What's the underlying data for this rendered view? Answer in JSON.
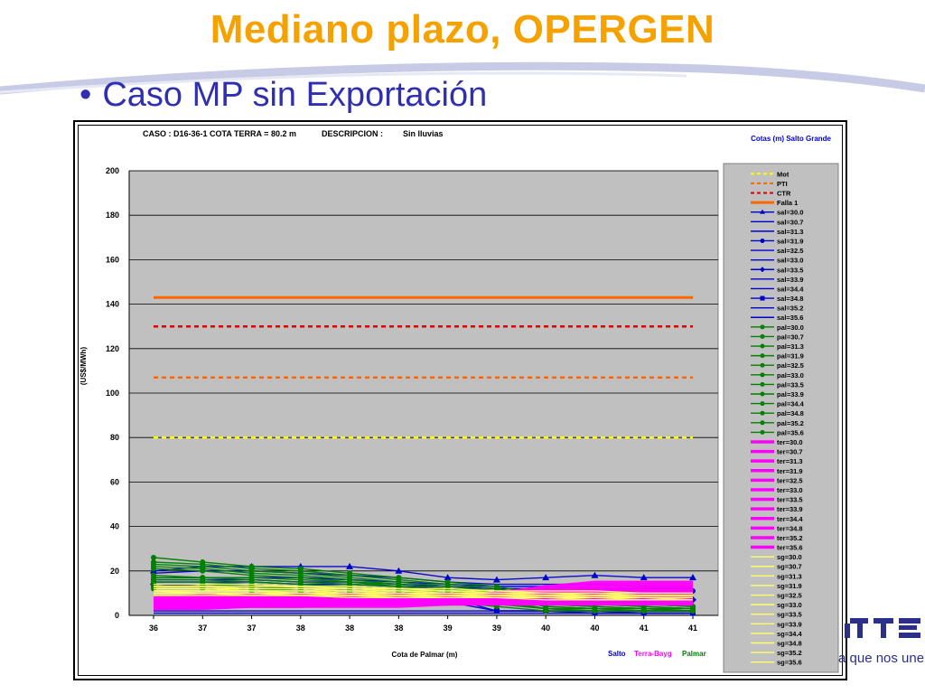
{
  "slide": {
    "title": "Mediano plazo, OPERGEN",
    "bullet": "Caso MP sin Exportación",
    "slogan": "a que nos une"
  },
  "colors": {
    "title": "#f5a200",
    "bullet": "#2f2fb0",
    "plot_bg": "#c0c0c0",
    "mot": "#ffff00",
    "pti": "#ff6600",
    "ctr": "#e00000",
    "falla": "#ff6600",
    "sal": "#0000cc",
    "pal": "#008000",
    "ter": "#ff00ff",
    "sg": "#ffff66"
  },
  "chart_data": {
    "type": "line",
    "header_case": "CASO : D16-36-1 COTA TERRA = 80.2 m",
    "header_desc_label": "DESCRIPCION :",
    "header_desc_value": "Sin lluvias",
    "legend_title": "Cotas (m) Salto Grande",
    "legend_position": "right",
    "xlabel": "Cota de Palmar (m)",
    "ylabel": "(US$/MWh)",
    "x_group_labels": [
      "Salto",
      "Terra-Bayg",
      "Palmar"
    ],
    "categories": [
      "36",
      "37",
      "37",
      "38",
      "38",
      "38",
      "39",
      "39",
      "40",
      "40",
      "41",
      "41"
    ],
    "ylim": [
      0,
      200
    ],
    "yticks": [
      0,
      20,
      40,
      60,
      80,
      100,
      120,
      140,
      160,
      180,
      200
    ],
    "grid": true,
    "reference_lines": [
      {
        "name": "Mot",
        "value": 80,
        "style": "dashed",
        "color": "#ffff00"
      },
      {
        "name": "PTI",
        "value": 107,
        "style": "dashed",
        "color": "#ff6600"
      },
      {
        "name": "CTR",
        "value": 130,
        "style": "dashed",
        "color": "#e00000"
      },
      {
        "name": "Falla 1",
        "value": 143,
        "style": "solid",
        "color": "#ff6600"
      }
    ],
    "series": [
      {
        "name": "sal=30.0",
        "group": "sal",
        "marker": "triangle",
        "values": [
          20,
          22,
          22,
          22,
          22,
          20,
          17,
          16,
          17,
          18,
          17,
          17
        ]
      },
      {
        "name": "sal=30.7",
        "group": "sal",
        "marker": "none",
        "values": [
          19,
          20,
          20,
          19,
          18,
          17,
          15,
          14,
          14,
          14,
          13,
          13
        ]
      },
      {
        "name": "sal=31.3",
        "group": "sal",
        "marker": "none",
        "values": [
          17,
          17,
          17,
          17,
          16,
          15,
          14,
          13,
          13,
          12,
          12,
          12
        ]
      },
      {
        "name": "sal=31.9",
        "group": "sal",
        "marker": "circle",
        "values": [
          16,
          16,
          16,
          15,
          15,
          14,
          13,
          12,
          12,
          11,
          11,
          11
        ]
      },
      {
        "name": "sal=32.5",
        "group": "sal",
        "marker": "none",
        "values": [
          15,
          15,
          15,
          14,
          14,
          13,
          12,
          11,
          10,
          10,
          10,
          9
        ]
      },
      {
        "name": "sal=33.0",
        "group": "sal",
        "marker": "none",
        "values": [
          14,
          14,
          14,
          13,
          13,
          12,
          11,
          10,
          9,
          9,
          9,
          8
        ]
      },
      {
        "name": "sal=33.5",
        "group": "sal",
        "marker": "diamond",
        "values": [
          14,
          13,
          13,
          12,
          12,
          11,
          10,
          9,
          8,
          8,
          8,
          7
        ]
      },
      {
        "name": "sal=33.9",
        "group": "sal",
        "marker": "none",
        "values": [
          13,
          13,
          12,
          12,
          11,
          10,
          9,
          8,
          7,
          6,
          6,
          5
        ]
      },
      {
        "name": "sal=34.4",
        "group": "sal",
        "marker": "none",
        "values": [
          12,
          12,
          11,
          11,
          10,
          9,
          6,
          2,
          2,
          2,
          1,
          1
        ]
      },
      {
        "name": "sal=34.8",
        "group": "sal",
        "marker": "square",
        "values": [
          14,
          13,
          12,
          11,
          10,
          9,
          8,
          2,
          2,
          1,
          1,
          1
        ]
      },
      {
        "name": "sal=35.2",
        "group": "sal",
        "marker": "none",
        "values": [
          2,
          2,
          2,
          2,
          2,
          2,
          2,
          2,
          2,
          2,
          2,
          2
        ]
      },
      {
        "name": "sal=35.6",
        "group": "sal",
        "marker": "none",
        "values": [
          1,
          1,
          1,
          1,
          1,
          1,
          1,
          1,
          1,
          1,
          1,
          1
        ]
      },
      {
        "name": "pal=30.0",
        "group": "pal",
        "marker": "circle",
        "values": [
          26,
          24,
          22,
          21,
          19,
          17,
          15,
          13,
          9,
          6,
          5,
          4
        ]
      },
      {
        "name": "pal=30.7",
        "group": "pal",
        "marker": "circle",
        "values": [
          24,
          23,
          21,
          20,
          18,
          16,
          14,
          12,
          8,
          6,
          5,
          4
        ]
      },
      {
        "name": "pal=31.3",
        "group": "pal",
        "marker": "circle",
        "values": [
          23,
          22,
          20,
          19,
          17,
          15,
          13,
          11,
          7,
          5,
          4,
          3
        ]
      },
      {
        "name": "pal=31.9",
        "group": "pal",
        "marker": "circle",
        "values": [
          22,
          21,
          19,
          18,
          16,
          14,
          12,
          10,
          6,
          5,
          4,
          3
        ]
      },
      {
        "name": "pal=32.5",
        "group": "pal",
        "marker": "circle",
        "values": [
          21,
          20,
          18,
          17,
          15,
          13,
          11,
          9,
          5,
          4,
          3,
          3
        ]
      },
      {
        "name": "pal=33.0",
        "group": "pal",
        "marker": "circle",
        "values": [
          18,
          17,
          17,
          16,
          15,
          14,
          12,
          10,
          5,
          4,
          3,
          2
        ]
      },
      {
        "name": "pal=33.5",
        "group": "pal",
        "marker": "circle",
        "values": [
          17,
          17,
          16,
          15,
          14,
          13,
          11,
          9,
          4,
          3,
          3,
          2
        ]
      },
      {
        "name": "pal=33.9",
        "group": "pal",
        "marker": "circle",
        "values": [
          16,
          16,
          15,
          14,
          13,
          12,
          10,
          8,
          4,
          3,
          2,
          2
        ]
      },
      {
        "name": "pal=34.4",
        "group": "pal",
        "marker": "circle",
        "values": [
          15,
          15,
          14,
          13,
          12,
          11,
          9,
          7,
          3,
          3,
          2,
          2
        ]
      },
      {
        "name": "pal=34.8",
        "group": "pal",
        "marker": "circle",
        "values": [
          14,
          14,
          13,
          12,
          11,
          10,
          8,
          6,
          3,
          2,
          2,
          2
        ]
      },
      {
        "name": "pal=35.2",
        "group": "pal",
        "marker": "circle",
        "values": [
          13,
          13,
          12,
          11,
          10,
          9,
          7,
          5,
          3,
          2,
          2,
          2
        ]
      },
      {
        "name": "pal=35.6",
        "group": "pal",
        "marker": "circle",
        "values": [
          12,
          12,
          11,
          10,
          9,
          8,
          6,
          4,
          2,
          2,
          2,
          2
        ]
      },
      {
        "name": "ter=30.0",
        "group": "ter",
        "marker": "none",
        "values": [
          8,
          9,
          9,
          9,
          9,
          9,
          9,
          10,
          13,
          15,
          15,
          15
        ]
      },
      {
        "name": "ter=30.7",
        "group": "ter",
        "marker": "none",
        "values": [
          7,
          8,
          9,
          9,
          9,
          9,
          9,
          10,
          12,
          14,
          14,
          14
        ]
      },
      {
        "name": "ter=31.3",
        "group": "ter",
        "marker": "none",
        "values": [
          7,
          8,
          8,
          8,
          8,
          8,
          9,
          9,
          11,
          13,
          13,
          13
        ]
      },
      {
        "name": "ter=31.9",
        "group": "ter",
        "marker": "none",
        "values": [
          6,
          7,
          8,
          8,
          8,
          8,
          8,
          9,
          10,
          12,
          12,
          12
        ]
      },
      {
        "name": "ter=32.5",
        "group": "ter",
        "marker": "none",
        "values": [
          6,
          7,
          7,
          7,
          7,
          8,
          8,
          9,
          10,
          11,
          11,
          11
        ]
      },
      {
        "name": "ter=33.0",
        "group": "ter",
        "marker": "none",
        "values": [
          5,
          6,
          7,
          7,
          7,
          7,
          8,
          8,
          9,
          10,
          10,
          10
        ]
      },
      {
        "name": "ter=33.5",
        "group": "ter",
        "marker": "none",
        "values": [
          5,
          6,
          6,
          6,
          6,
          7,
          7,
          8,
          9,
          9,
          9,
          9
        ]
      },
      {
        "name": "ter=33.9",
        "group": "ter",
        "marker": "none",
        "values": [
          4,
          5,
          6,
          6,
          6,
          6,
          7,
          7,
          8,
          8,
          8,
          8
        ]
      },
      {
        "name": "ter=34.4",
        "group": "ter",
        "marker": "none",
        "values": [
          4,
          5,
          5,
          5,
          5,
          6,
          6,
          7,
          7,
          8,
          8,
          8
        ]
      },
      {
        "name": "ter=34.8",
        "group": "ter",
        "marker": "none",
        "values": [
          4,
          4,
          5,
          5,
          5,
          5,
          6,
          6,
          7,
          7,
          7,
          7
        ]
      },
      {
        "name": "ter=35.2",
        "group": "ter",
        "marker": "none",
        "values": [
          3,
          4,
          4,
          4,
          5,
          5,
          5,
          6,
          6,
          6,
          6,
          6
        ]
      },
      {
        "name": "ter=35.6",
        "group": "ter",
        "marker": "none",
        "values": [
          3,
          3,
          4,
          4,
          4,
          4,
          5,
          5,
          5,
          5,
          5,
          5
        ]
      },
      {
        "name": "sg=30.0",
        "group": "sg",
        "marker": "none",
        "values": [
          14,
          14,
          14,
          13,
          13,
          12,
          12,
          11,
          11,
          11,
          10,
          10
        ]
      },
      {
        "name": "sg=30.7",
        "group": "sg",
        "marker": "none",
        "values": [
          13,
          13,
          13,
          13,
          12,
          12,
          11,
          11,
          10,
          10,
          10,
          10
        ]
      },
      {
        "name": "sg=31.3",
        "group": "sg",
        "marker": "none",
        "values": [
          13,
          13,
          12,
          12,
          12,
          11,
          11,
          10,
          10,
          10,
          9,
          9
        ]
      },
      {
        "name": "sg=31.9",
        "group": "sg",
        "marker": "none",
        "values": [
          12,
          12,
          12,
          12,
          11,
          11,
          10,
          10,
          10,
          9,
          9,
          9
        ]
      },
      {
        "name": "sg=32.5",
        "group": "sg",
        "marker": "none",
        "values": [
          12,
          12,
          11,
          11,
          11,
          10,
          10,
          10,
          9,
          9,
          9,
          9
        ]
      },
      {
        "name": "sg=33.0",
        "group": "sg",
        "marker": "none",
        "values": [
          11,
          11,
          11,
          11,
          10,
          10,
          10,
          9,
          9,
          9,
          8,
          8
        ]
      },
      {
        "name": "sg=33.5",
        "group": "sg",
        "marker": "none",
        "values": [
          11,
          11,
          11,
          10,
          10,
          10,
          9,
          9,
          9,
          8,
          8,
          8
        ]
      },
      {
        "name": "sg=33.9",
        "group": "sg",
        "marker": "none",
        "values": [
          11,
          10,
          10,
          10,
          10,
          9,
          9,
          9,
          8,
          8,
          8,
          8
        ]
      },
      {
        "name": "sg=34.4",
        "group": "sg",
        "marker": "none",
        "values": [
          10,
          10,
          10,
          10,
          9,
          9,
          9,
          8,
          8,
          8,
          8,
          7
        ]
      },
      {
        "name": "sg=34.8",
        "group": "sg",
        "marker": "none",
        "values": [
          10,
          10,
          10,
          9,
          9,
          9,
          8,
          8,
          8,
          8,
          7,
          7
        ]
      },
      {
        "name": "sg=35.2",
        "group": "sg",
        "marker": "none",
        "values": [
          10,
          10,
          9,
          9,
          9,
          8,
          8,
          8,
          8,
          7,
          7,
          7
        ]
      },
      {
        "name": "sg=35.6",
        "group": "sg",
        "marker": "none",
        "values": [
          9,
          9,
          9,
          9,
          8,
          8,
          8,
          8,
          7,
          7,
          7,
          7
        ]
      }
    ]
  }
}
